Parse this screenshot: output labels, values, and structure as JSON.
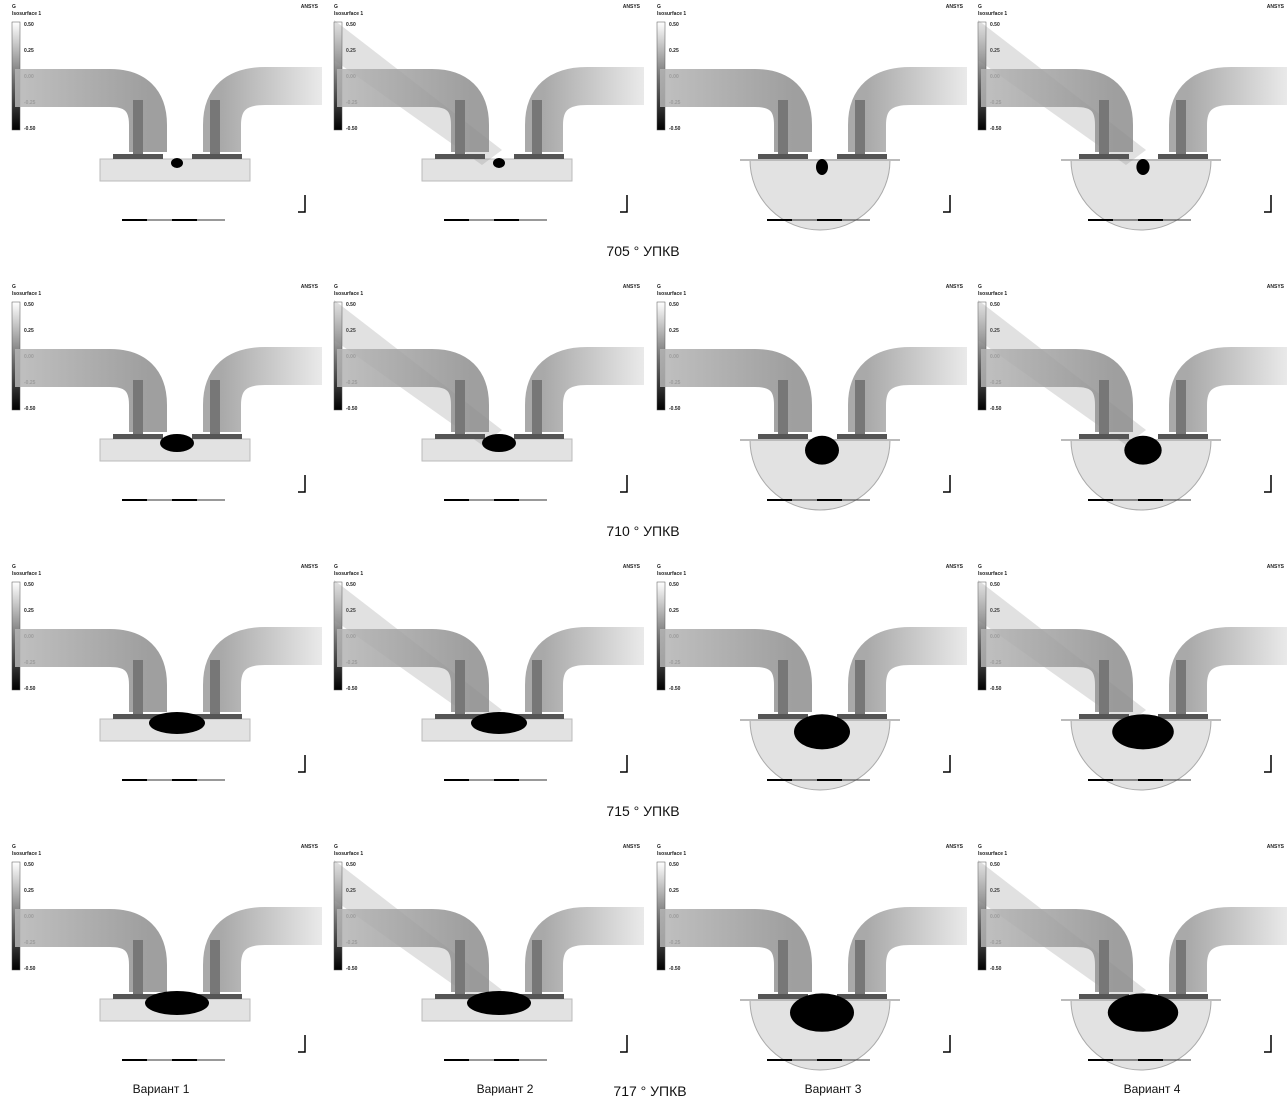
{
  "rows": [
    "705 ° УПКВ",
    "710 ° УПКВ",
    "715 ° УПКВ",
    "717 ° УПКВ"
  ],
  "columns": [
    "Вариант 1",
    "Вариант 2",
    "Вариант 3",
    "Вариант 4"
  ],
  "panel_legend": {
    "title": "G",
    "subtitle": "Isosurface 1",
    "ticks": [
      "0.50",
      "0.25",
      "0.00",
      "-0.25",
      "-0.50"
    ],
    "brand": "ANSYS"
  }
}
